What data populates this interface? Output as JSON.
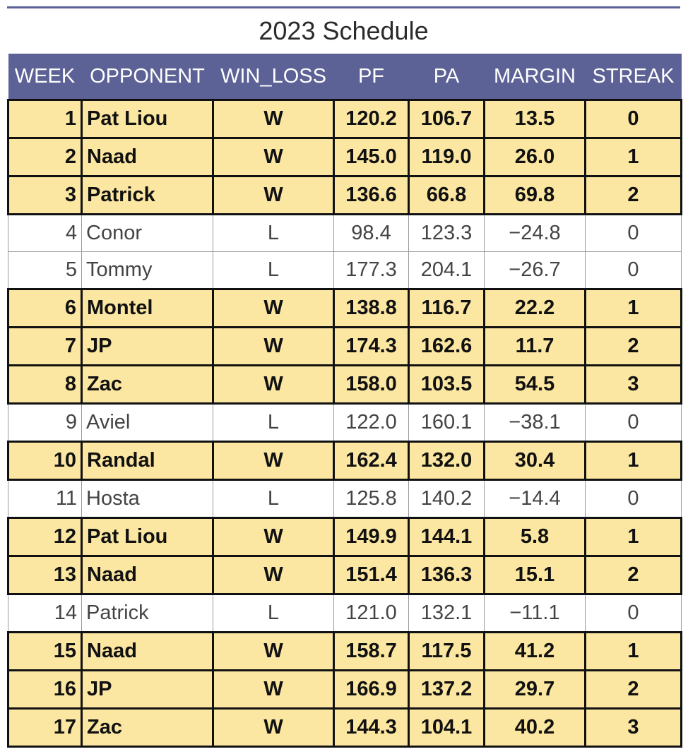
{
  "title": "2023 Schedule",
  "columns": [
    "WEEK",
    "OPPONENT",
    "WIN_LOSS",
    "PF",
    "PA",
    "MARGIN",
    "STREAK"
  ],
  "rows": [
    {
      "week": "1",
      "opponent": "Pat Liou",
      "win_loss": "W",
      "pf": "120.2",
      "pa": "106.7",
      "margin": "13.5",
      "streak": "0"
    },
    {
      "week": "2",
      "opponent": "Naad",
      "win_loss": "W",
      "pf": "145.0",
      "pa": "119.0",
      "margin": "26.0",
      "streak": "1"
    },
    {
      "week": "3",
      "opponent": "Patrick",
      "win_loss": "W",
      "pf": "136.6",
      "pa": "66.8",
      "margin": "69.8",
      "streak": "2"
    },
    {
      "week": "4",
      "opponent": "Conor",
      "win_loss": "L",
      "pf": "98.4",
      "pa": "123.3",
      "margin": "−24.8",
      "streak": "0"
    },
    {
      "week": "5",
      "opponent": "Tommy",
      "win_loss": "L",
      "pf": "177.3",
      "pa": "204.1",
      "margin": "−26.7",
      "streak": "0"
    },
    {
      "week": "6",
      "opponent": "Montel",
      "win_loss": "W",
      "pf": "138.8",
      "pa": "116.7",
      "margin": "22.2",
      "streak": "1"
    },
    {
      "week": "7",
      "opponent": "JP",
      "win_loss": "W",
      "pf": "174.3",
      "pa": "162.6",
      "margin": "11.7",
      "streak": "2"
    },
    {
      "week": "8",
      "opponent": "Zac",
      "win_loss": "W",
      "pf": "158.0",
      "pa": "103.5",
      "margin": "54.5",
      "streak": "3"
    },
    {
      "week": "9",
      "opponent": "Aviel",
      "win_loss": "L",
      "pf": "122.0",
      "pa": "160.1",
      "margin": "−38.1",
      "streak": "0"
    },
    {
      "week": "10",
      "opponent": "Randal",
      "win_loss": "W",
      "pf": "162.4",
      "pa": "132.0",
      "margin": "30.4",
      "streak": "1"
    },
    {
      "week": "11",
      "opponent": "Hosta",
      "win_loss": "L",
      "pf": "125.8",
      "pa": "140.2",
      "margin": "−14.4",
      "streak": "0"
    },
    {
      "week": "12",
      "opponent": "Pat Liou",
      "win_loss": "W",
      "pf": "149.9",
      "pa": "144.1",
      "margin": "5.8",
      "streak": "1"
    },
    {
      "week": "13",
      "opponent": "Naad",
      "win_loss": "W",
      "pf": "151.4",
      "pa": "136.3",
      "margin": "15.1",
      "streak": "2"
    },
    {
      "week": "14",
      "opponent": "Patrick",
      "win_loss": "L",
      "pf": "121.0",
      "pa": "132.1",
      "margin": "−11.1",
      "streak": "0"
    },
    {
      "week": "15",
      "opponent": "Naad",
      "win_loss": "W",
      "pf": "158.7",
      "pa": "117.5",
      "margin": "41.2",
      "streak": "1"
    },
    {
      "week": "16",
      "opponent": "JP",
      "win_loss": "W",
      "pf": "166.9",
      "pa": "137.2",
      "margin": "29.7",
      "streak": "2"
    },
    {
      "week": "17",
      "opponent": "Zac",
      "win_loss": "W",
      "pf": "144.3",
      "pa": "104.1",
      "margin": "40.2",
      "streak": "3"
    }
  ],
  "colors": {
    "header_bg": "#5c6196",
    "win_row_bg": "#fbe7a1",
    "loss_row_bg": "#ffffff"
  }
}
